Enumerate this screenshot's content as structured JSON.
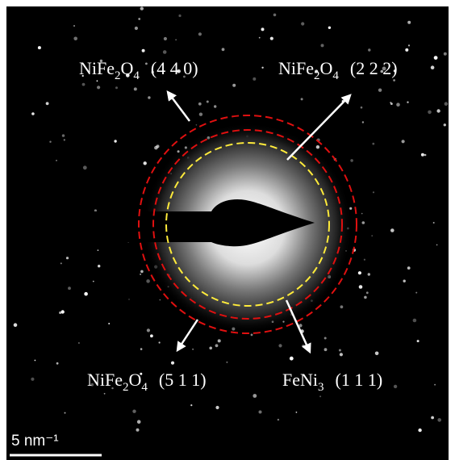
{
  "annotations": [
    {
      "parts": [
        "NiFe",
        "2",
        "O",
        "4"
      ],
      "index": "(4 4 0)"
    },
    {
      "parts": [
        "NiFe",
        "2",
        "O",
        "4"
      ],
      "index": "(2 2 2)"
    },
    {
      "parts": [
        "NiFe",
        "2",
        "O",
        "4"
      ],
      "index": "(5 1 1)"
    },
    {
      "parts": [
        "FeNi",
        "3"
      ],
      "index": "(1 1 1)"
    }
  ],
  "scale_bar": "5 nm⁻¹"
}
